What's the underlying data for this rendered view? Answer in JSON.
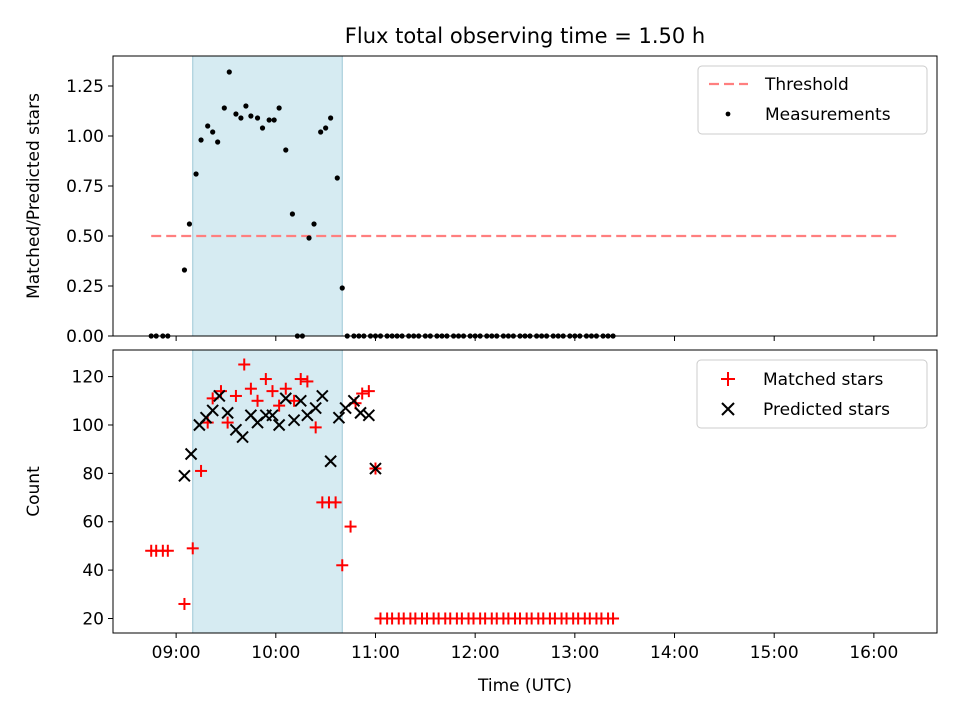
{
  "title": "Flux total observing time = 1.50 h",
  "colors": {
    "threshold": "#ff7f7f",
    "measurement": "#000000",
    "matched": "#ff0000",
    "predicted": "#000000",
    "window": "#add8e6"
  },
  "chart_data": [
    {
      "type": "scatter",
      "ylabel": "Matched/Predicted stars",
      "xlabel": "",
      "ylim": [
        0,
        1.4
      ],
      "xlim": [
        "08:22",
        "16:38"
      ],
      "yticks": [
        0,
        0.25,
        0.5,
        0.75,
        1.0,
        1.25
      ],
      "ytick_labels": [
        "0.00",
        "0.25",
        "0.50",
        "0.75",
        "1.00",
        "1.25"
      ],
      "xticks": [
        "09:00",
        "10:00",
        "11:00",
        "12:00",
        "13:00",
        "14:00",
        "15:00",
        "16:00"
      ],
      "legend": [
        "Threshold",
        "Measurements"
      ],
      "legend_position": "upper right",
      "observing_window": [
        "09:10",
        "10:40"
      ],
      "threshold": {
        "name": "Threshold",
        "y": 0.5,
        "x_range": [
          "08:45",
          "16:15"
        ],
        "style": "dashed"
      },
      "series": [
        {
          "name": "Measurements",
          "marker": "dot",
          "points": [
            [
              "08:45",
              0
            ],
            [
              "08:48",
              0
            ],
            [
              "08:52",
              0
            ],
            [
              "08:55",
              0
            ],
            [
              "09:05",
              0.33
            ],
            [
              "09:08",
              0.56
            ],
            [
              "09:12",
              0.81
            ],
            [
              "09:15",
              0.98
            ],
            [
              "09:19",
              1.05
            ],
            [
              "09:22",
              1.02
            ],
            [
              "09:25",
              0.97
            ],
            [
              "09:29",
              1.14
            ],
            [
              "09:32",
              1.32
            ],
            [
              "09:36",
              1.11
            ],
            [
              "09:39",
              1.09
            ],
            [
              "09:42",
              1.15
            ],
            [
              "09:45",
              1.1
            ],
            [
              "09:49",
              1.09
            ],
            [
              "09:52",
              1.04
            ],
            [
              "09:56",
              1.08
            ],
            [
              "09:59",
              1.08
            ],
            [
              "10:02",
              1.14
            ],
            [
              "10:06",
              0.93
            ],
            [
              "10:10",
              0.61
            ],
            [
              "10:13",
              0
            ],
            [
              "10:16",
              0
            ],
            [
              "10:20",
              0.49
            ],
            [
              "10:23",
              0.56
            ],
            [
              "10:27",
              1.02
            ],
            [
              "10:30",
              1.04
            ],
            [
              "10:33",
              1.09
            ],
            [
              "10:37",
              0.79
            ],
            [
              "10:40",
              0.24
            ],
            [
              "10:43",
              0
            ],
            [
              "10:47",
              0
            ],
            [
              "10:50",
              0
            ],
            [
              "10:53",
              0
            ],
            [
              "10:57",
              0
            ],
            [
              "11:00",
              0
            ],
            [
              "11:03",
              0
            ],
            [
              "11:07",
              0
            ],
            [
              "11:10",
              0
            ],
            [
              "11:13",
              0
            ],
            [
              "11:16",
              0
            ],
            [
              "11:20",
              0
            ],
            [
              "11:23",
              0
            ],
            [
              "11:26",
              0
            ],
            [
              "11:30",
              0
            ],
            [
              "11:33",
              0
            ],
            [
              "11:37",
              0
            ],
            [
              "11:40",
              0
            ],
            [
              "11:43",
              0
            ],
            [
              "11:47",
              0
            ],
            [
              "11:50",
              0
            ],
            [
              "11:53",
              0
            ],
            [
              "11:57",
              0
            ],
            [
              "12:00",
              0
            ],
            [
              "12:03",
              0
            ],
            [
              "12:07",
              0
            ],
            [
              "12:10",
              0
            ],
            [
              "12:13",
              0
            ],
            [
              "12:17",
              0
            ],
            [
              "12:20",
              0
            ],
            [
              "12:23",
              0
            ],
            [
              "12:27",
              0
            ],
            [
              "12:30",
              0
            ],
            [
              "12:33",
              0
            ],
            [
              "12:37",
              0
            ],
            [
              "12:40",
              0
            ],
            [
              "12:43",
              0
            ],
            [
              "12:47",
              0
            ],
            [
              "12:50",
              0
            ],
            [
              "12:53",
              0
            ],
            [
              "12:57",
              0
            ],
            [
              "13:00",
              0
            ],
            [
              "13:03",
              0
            ],
            [
              "13:07",
              0
            ],
            [
              "13:10",
              0
            ],
            [
              "13:13",
              0
            ],
            [
              "13:17",
              0
            ],
            [
              "13:20",
              0
            ],
            [
              "13:23",
              0
            ]
          ]
        }
      ]
    },
    {
      "type": "scatter",
      "ylabel": "Count",
      "xlabel": "Time (UTC)",
      "ylim": [
        14,
        131
      ],
      "xlim": [
        "08:22",
        "16:38"
      ],
      "yticks": [
        20,
        40,
        60,
        80,
        100,
        120
      ],
      "ytick_labels": [
        "20",
        "40",
        "60",
        "80",
        "100",
        "120"
      ],
      "xticks": [
        "09:00",
        "10:00",
        "11:00",
        "12:00",
        "13:00",
        "14:00",
        "15:00",
        "16:00"
      ],
      "legend": [
        "Matched stars",
        "Predicted stars"
      ],
      "legend_position": "upper right",
      "observing_window": [
        "09:10",
        "10:40"
      ],
      "series": [
        {
          "name": "Matched stars",
          "marker": "plus",
          "points": [
            [
              "08:45",
              48
            ],
            [
              "08:48",
              48
            ],
            [
              "08:52",
              48
            ],
            [
              "08:55",
              48
            ],
            [
              "09:05",
              26
            ],
            [
              "09:10",
              49
            ],
            [
              "09:15",
              81
            ],
            [
              "09:19",
              101
            ],
            [
              "09:22",
              111
            ],
            [
              "09:27",
              114
            ],
            [
              "09:31",
              101
            ],
            [
              "09:36",
              112
            ],
            [
              "09:41",
              125
            ],
            [
              "09:45",
              115
            ],
            [
              "09:49",
              110
            ],
            [
              "09:54",
              119
            ],
            [
              "09:58",
              114
            ],
            [
              "10:02",
              108
            ],
            [
              "10:06",
              115
            ],
            [
              "10:11",
              110
            ],
            [
              "10:15",
              119
            ],
            [
              "10:19",
              118
            ],
            [
              "10:24",
              99
            ],
            [
              "10:28",
              68
            ],
            [
              "10:32",
              68
            ],
            [
              "10:36",
              68
            ],
            [
              "10:40",
              42
            ],
            [
              "10:45",
              58
            ],
            [
              "10:48",
              109
            ],
            [
              "10:52",
              113
            ],
            [
              "10:56",
              114
            ],
            [
              "11:00",
              82
            ],
            [
              "11:03",
              20
            ],
            [
              "11:07",
              20
            ],
            [
              "11:10",
              20
            ],
            [
              "11:14",
              20
            ],
            [
              "11:17",
              20
            ],
            [
              "11:21",
              20
            ],
            [
              "11:24",
              20
            ],
            [
              "11:28",
              20
            ],
            [
              "11:31",
              20
            ],
            [
              "11:35",
              20
            ],
            [
              "11:38",
              20
            ],
            [
              "11:42",
              20
            ],
            [
              "11:45",
              20
            ],
            [
              "11:49",
              20
            ],
            [
              "11:52",
              20
            ],
            [
              "11:56",
              20
            ],
            [
              "11:59",
              20
            ],
            [
              "12:03",
              20
            ],
            [
              "12:06",
              20
            ],
            [
              "12:10",
              20
            ],
            [
              "12:13",
              20
            ],
            [
              "12:17",
              20
            ],
            [
              "12:20",
              20
            ],
            [
              "12:24",
              20
            ],
            [
              "12:27",
              20
            ],
            [
              "12:31",
              20
            ],
            [
              "12:34",
              20
            ],
            [
              "12:38",
              20
            ],
            [
              "12:41",
              20
            ],
            [
              "12:45",
              20
            ],
            [
              "12:48",
              20
            ],
            [
              "12:52",
              20
            ],
            [
              "12:55",
              20
            ],
            [
              "12:59",
              20
            ],
            [
              "13:02",
              20
            ],
            [
              "13:06",
              20
            ],
            [
              "13:09",
              20
            ],
            [
              "13:13",
              20
            ],
            [
              "13:16",
              20
            ],
            [
              "13:20",
              20
            ],
            [
              "13:23",
              20
            ]
          ]
        },
        {
          "name": "Predicted stars",
          "marker": "x",
          "points": [
            [
              "09:05",
              79
            ],
            [
              "09:09",
              88
            ],
            [
              "09:14",
              100
            ],
            [
              "09:18",
              103
            ],
            [
              "09:22",
              106
            ],
            [
              "09:26",
              112
            ],
            [
              "09:31",
              105
            ],
            [
              "09:36",
              98
            ],
            [
              "09:40",
              95
            ],
            [
              "09:45",
              104
            ],
            [
              "09:49",
              101
            ],
            [
              "09:54",
              104
            ],
            [
              "09:58",
              104
            ],
            [
              "10:02",
              100
            ],
            [
              "10:06",
              111
            ],
            [
              "10:11",
              102
            ],
            [
              "10:15",
              110
            ],
            [
              "10:19",
              104
            ],
            [
              "10:24",
              107
            ],
            [
              "10:28",
              112
            ],
            [
              "10:33",
              85
            ],
            [
              "10:38",
              103
            ],
            [
              "10:42",
              107
            ],
            [
              "10:47",
              110
            ],
            [
              "10:51",
              105
            ],
            [
              "10:56",
              104
            ],
            [
              "11:00",
              82
            ]
          ]
        }
      ]
    }
  ]
}
